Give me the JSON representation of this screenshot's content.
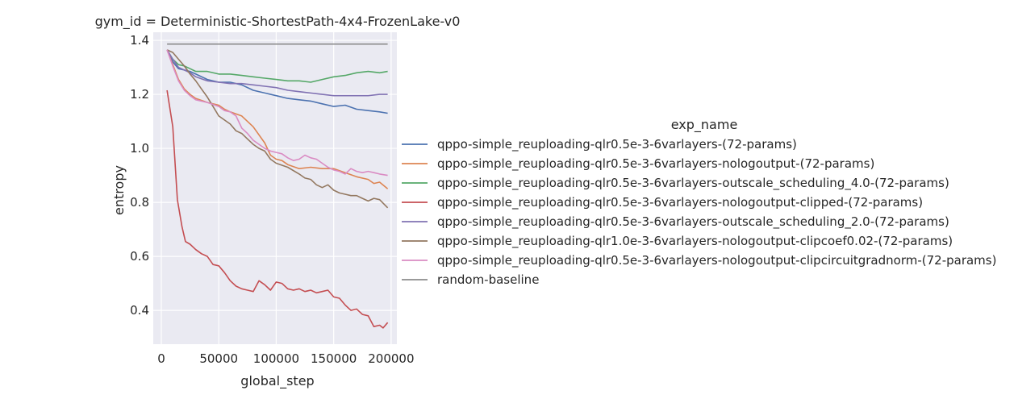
{
  "chart_data": {
    "type": "line",
    "title": "gym_id = Deterministic-ShortestPath-4x4-FrozenLake-v0",
    "xlabel": "global_step",
    "ylabel": "entropy",
    "xlim": [
      -7000,
      205000
    ],
    "ylim": [
      0.275,
      1.43
    ],
    "xticks": [
      0,
      50000,
      100000,
      150000,
      200000
    ],
    "yticks": [
      0.4,
      0.6,
      0.8,
      1.0,
      1.2,
      1.4
    ],
    "xtick_labels": [
      "0",
      "50000",
      "100000",
      "150000",
      "200000"
    ],
    "ytick_labels": [
      "0.4",
      "0.6",
      "0.8",
      "1.0",
      "1.2",
      "1.4"
    ],
    "grid": true,
    "legend_title": "exp_name",
    "legend_position": "right",
    "series": [
      {
        "name": "qppo-simple_reuploading-qlr0.5e-3-6varlayers-(72-params)",
        "color": "#4c72b0",
        "x": [
          5000,
          10000,
          15000,
          20000,
          25000,
          30000,
          40000,
          50000,
          60000,
          70000,
          80000,
          90000,
          100000,
          110000,
          120000,
          130000,
          140000,
          150000,
          160000,
          170000,
          180000,
          190000,
          197000
        ],
        "y": [
          1.365,
          1.32,
          1.295,
          1.29,
          1.285,
          1.275,
          1.255,
          1.245,
          1.245,
          1.235,
          1.215,
          1.205,
          1.195,
          1.185,
          1.18,
          1.175,
          1.165,
          1.155,
          1.16,
          1.145,
          1.14,
          1.135,
          1.13
        ]
      },
      {
        "name": "qppo-simple_reuploading-qlr0.5e-3-6varlayers-nologoutput-(72-params)",
        "color": "#dd8452",
        "x": [
          5000,
          10000,
          15000,
          20000,
          25000,
          30000,
          40000,
          50000,
          55000,
          60000,
          70000,
          80000,
          90000,
          95000,
          100000,
          105000,
          110000,
          120000,
          130000,
          140000,
          150000,
          160000,
          170000,
          180000,
          185000,
          190000,
          197000
        ],
        "y": [
          1.365,
          1.31,
          1.255,
          1.22,
          1.2,
          1.185,
          1.17,
          1.16,
          1.145,
          1.135,
          1.12,
          1.08,
          1.02,
          0.975,
          0.96,
          0.955,
          0.94,
          0.925,
          0.93,
          0.925,
          0.925,
          0.91,
          0.895,
          0.885,
          0.87,
          0.875,
          0.85
        ]
      },
      {
        "name": "qppo-simple_reuploading-qlr0.5e-3-6varlayers-outscale_scheduling_4.0-(72-params)",
        "color": "#55a868",
        "x": [
          5000,
          10000,
          15000,
          20000,
          25000,
          30000,
          40000,
          50000,
          60000,
          70000,
          80000,
          90000,
          100000,
          110000,
          120000,
          130000,
          140000,
          150000,
          160000,
          170000,
          180000,
          190000,
          197000
        ],
        "y": [
          1.365,
          1.33,
          1.31,
          1.305,
          1.295,
          1.285,
          1.285,
          1.275,
          1.275,
          1.27,
          1.265,
          1.26,
          1.255,
          1.25,
          1.25,
          1.245,
          1.255,
          1.265,
          1.27,
          1.28,
          1.285,
          1.28,
          1.285
        ]
      },
      {
        "name": "qppo-simple_reuploading-qlr0.5e-3-6varlayers-nologoutput-clipped-(72-params)",
        "color": "#c44e52",
        "x": [
          5000,
          10000,
          14000,
          18000,
          21000,
          25000,
          30000,
          35000,
          40000,
          45000,
          50000,
          55000,
          60000,
          65000,
          70000,
          75000,
          80000,
          85000,
          90000,
          95000,
          100000,
          105000,
          110000,
          115000,
          120000,
          125000,
          130000,
          135000,
          140000,
          145000,
          150000,
          155000,
          160000,
          165000,
          170000,
          175000,
          180000,
          185000,
          190000,
          193000,
          197000
        ],
        "y": [
          1.215,
          1.08,
          0.81,
          0.71,
          0.655,
          0.645,
          0.625,
          0.61,
          0.6,
          0.57,
          0.565,
          0.54,
          0.51,
          0.49,
          0.48,
          0.475,
          0.47,
          0.51,
          0.495,
          0.475,
          0.505,
          0.5,
          0.48,
          0.475,
          0.48,
          0.47,
          0.475,
          0.465,
          0.47,
          0.475,
          0.45,
          0.445,
          0.42,
          0.4,
          0.405,
          0.385,
          0.38,
          0.34,
          0.345,
          0.335,
          0.355
        ]
      },
      {
        "name": "qppo-simple_reuploading-qlr0.5e-3-6varlayers-outscale_scheduling_2.0-(72-params)",
        "color": "#8172b3",
        "x": [
          5000,
          10000,
          15000,
          20000,
          25000,
          30000,
          40000,
          50000,
          60000,
          70000,
          80000,
          90000,
          100000,
          110000,
          120000,
          130000,
          140000,
          150000,
          160000,
          170000,
          180000,
          190000,
          197000
        ],
        "y": [
          1.365,
          1.33,
          1.3,
          1.29,
          1.28,
          1.265,
          1.25,
          1.245,
          1.24,
          1.24,
          1.235,
          1.23,
          1.225,
          1.215,
          1.21,
          1.205,
          1.2,
          1.195,
          1.195,
          1.195,
          1.195,
          1.2,
          1.2
        ]
      },
      {
        "name": "qppo-simple_reuploading-qlr1.0e-3-6varlayers-nologoutput-clipcoef0.02-(72-params)",
        "color": "#937860",
        "x": [
          5000,
          10000,
          15000,
          20000,
          25000,
          30000,
          35000,
          40000,
          45000,
          50000,
          55000,
          60000,
          65000,
          70000,
          75000,
          80000,
          85000,
          90000,
          95000,
          100000,
          110000,
          120000,
          125000,
          130000,
          135000,
          140000,
          145000,
          150000,
          155000,
          160000,
          165000,
          170000,
          175000,
          180000,
          185000,
          190000,
          197000
        ],
        "y": [
          1.365,
          1.355,
          1.33,
          1.305,
          1.275,
          1.25,
          1.22,
          1.19,
          1.155,
          1.12,
          1.105,
          1.09,
          1.065,
          1.055,
          1.035,
          1.015,
          1.0,
          0.99,
          0.96,
          0.945,
          0.93,
          0.905,
          0.89,
          0.885,
          0.865,
          0.855,
          0.865,
          0.845,
          0.835,
          0.83,
          0.825,
          0.825,
          0.815,
          0.805,
          0.815,
          0.81,
          0.78
        ]
      },
      {
        "name": "qppo-simple_reuploading-qlr0.5e-3-6varlayers-nologoutput-clipcircuitgradnorm-(72-params)",
        "color": "#da8bc3",
        "x": [
          5000,
          10000,
          15000,
          20000,
          25000,
          30000,
          40000,
          50000,
          55000,
          60000,
          65000,
          70000,
          75000,
          80000,
          85000,
          90000,
          95000,
          100000,
          105000,
          110000,
          115000,
          120000,
          125000,
          130000,
          135000,
          140000,
          145000,
          150000,
          155000,
          160000,
          165000,
          170000,
          175000,
          180000,
          185000,
          190000,
          197000
        ],
        "y": [
          1.365,
          1.305,
          1.25,
          1.215,
          1.195,
          1.18,
          1.17,
          1.155,
          1.14,
          1.135,
          1.12,
          1.075,
          1.055,
          1.03,
          1.015,
          1.0,
          0.99,
          0.985,
          0.98,
          0.965,
          0.955,
          0.96,
          0.975,
          0.965,
          0.96,
          0.945,
          0.93,
          0.92,
          0.915,
          0.905,
          0.925,
          0.915,
          0.91,
          0.915,
          0.91,
          0.905,
          0.9
        ]
      },
      {
        "name": "random-baseline",
        "color": "#8c8c8c",
        "x": [
          5000,
          197000
        ],
        "y": [
          1.386,
          1.386
        ]
      }
    ]
  }
}
